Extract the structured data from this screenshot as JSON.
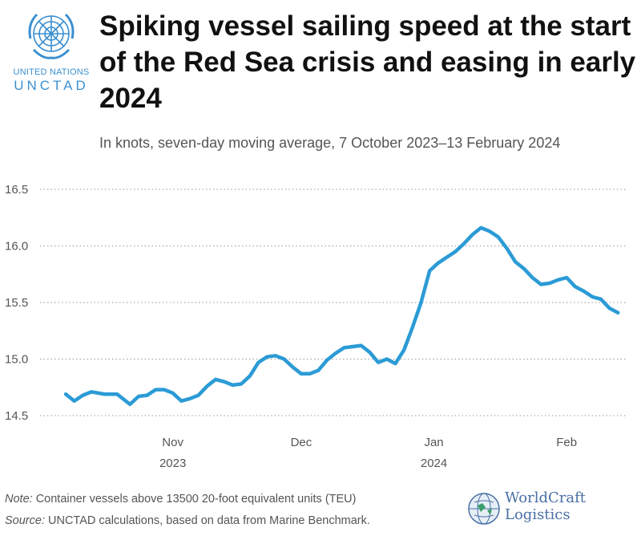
{
  "branding": {
    "org_line1": "UNITED NATIONS",
    "org_line2": "UNCTAD",
    "watermark_line1": "WorldCraft",
    "watermark_line2": "Logistics",
    "un_blue": "#3b8fd0"
  },
  "header": {
    "title": "Spiking vessel sailing speed at the start of the Red Sea crisis and easing in early 2024",
    "subtitle": "In knots, seven-day moving average, 7 October 2023–13 February 2024"
  },
  "footer": {
    "note_label": "Note:",
    "note_text": " Container vessels above 13500 20-foot equivalent units (TEU)",
    "source_label": "Source:",
    "source_text": " UNCTAD calculations, based on data from Marine Benchmark."
  },
  "chart_data": {
    "type": "line",
    "title": "Spiking vessel sailing speed at the start of the Red Sea crisis and easing in early 2024",
    "subtitle": "In knots, seven-day moving average, 7 October 2023–13 February 2024",
    "xlabel": "",
    "ylabel": "",
    "unit": "knots",
    "ylim": [
      14.5,
      16.5
    ],
    "yticks": [
      14.5,
      15.0,
      15.5,
      16.0,
      16.5
    ],
    "ytick_labels": [
      "14.5",
      "15.0",
      "15.5",
      "16.0",
      "16.5"
    ],
    "xlim": [
      "2023-10-07",
      "2024-02-13"
    ],
    "xticks": [
      {
        "date": "2023-11-01",
        "label": "Nov",
        "sublabel": "2023"
      },
      {
        "date": "2023-12-01",
        "label": "Dec",
        "sublabel": ""
      },
      {
        "date": "2024-01-01",
        "label": "Jan",
        "sublabel": "2024"
      },
      {
        "date": "2024-02-01",
        "label": "Feb",
        "sublabel": ""
      }
    ],
    "grid": "horizontal dotted",
    "line_color": "#2b9bd6",
    "series": [
      {
        "name": "",
        "x": [
          "2023-10-07",
          "2023-10-09",
          "2023-10-11",
          "2023-10-13",
          "2023-10-16",
          "2023-10-19",
          "2023-10-22",
          "2023-10-24",
          "2023-10-26",
          "2023-10-28",
          "2023-10-30",
          "2023-11-01",
          "2023-11-03",
          "2023-11-05",
          "2023-11-07",
          "2023-11-09",
          "2023-11-11",
          "2023-11-13",
          "2023-11-15",
          "2023-11-17",
          "2023-11-19",
          "2023-11-21",
          "2023-11-23",
          "2023-11-25",
          "2023-11-27",
          "2023-11-29",
          "2023-12-01",
          "2023-12-03",
          "2023-12-05",
          "2023-12-07",
          "2023-12-09",
          "2023-12-11",
          "2023-12-13",
          "2023-12-15",
          "2023-12-17",
          "2023-12-19",
          "2023-12-21",
          "2023-12-23",
          "2023-12-25",
          "2023-12-27",
          "2023-12-29",
          "2023-12-31",
          "2024-01-02",
          "2024-01-04",
          "2024-01-06",
          "2024-01-08",
          "2024-01-10",
          "2024-01-12",
          "2024-01-14",
          "2024-01-16",
          "2024-01-18",
          "2024-01-20",
          "2024-01-22",
          "2024-01-24",
          "2024-01-26",
          "2024-01-28",
          "2024-01-30",
          "2024-02-01",
          "2024-02-03",
          "2024-02-05",
          "2024-02-07",
          "2024-02-09",
          "2024-02-11",
          "2024-02-13"
        ],
        "y": [
          14.69,
          14.63,
          14.68,
          14.71,
          14.69,
          14.69,
          14.6,
          14.67,
          14.68,
          14.73,
          14.73,
          14.7,
          14.63,
          14.65,
          14.68,
          14.76,
          14.82,
          14.8,
          14.77,
          14.78,
          14.85,
          14.97,
          15.02,
          15.03,
          15.0,
          14.93,
          14.87,
          14.87,
          14.9,
          14.99,
          15.05,
          15.1,
          15.11,
          15.12,
          15.06,
          14.97,
          15.0,
          14.96,
          15.08,
          15.28,
          15.5,
          15.78,
          15.85,
          15.9,
          15.95,
          16.02,
          16.1,
          16.16,
          16.13,
          16.08,
          15.98,
          15.86,
          15.8,
          15.72,
          15.66,
          15.67,
          15.7,
          15.72,
          15.64,
          15.6,
          15.55,
          15.53,
          15.45,
          15.41
        ]
      }
    ]
  }
}
